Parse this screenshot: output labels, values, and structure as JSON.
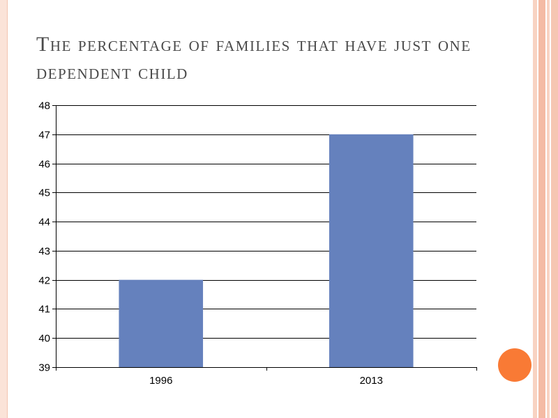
{
  "slide": {
    "title": "The percentage of families that have just one dependent child"
  },
  "chart_data": {
    "type": "bar",
    "title": "The percentage of families that have just one dependent child",
    "categories": [
      "1996",
      "2013"
    ],
    "values": [
      42,
      47
    ],
    "xlabel": "",
    "ylabel": "",
    "ylim": [
      39,
      48
    ],
    "yticks": [
      39,
      40,
      41,
      42,
      43,
      44,
      45,
      46,
      47,
      48
    ],
    "grid": true,
    "legend": false,
    "bar_color": "#6581bd"
  },
  "colors": {
    "bar": "#6581bd",
    "accent_dot": "#f97a35",
    "border_stripe": "#f6c8b4",
    "border_stripe_dark": "#f2b096"
  }
}
